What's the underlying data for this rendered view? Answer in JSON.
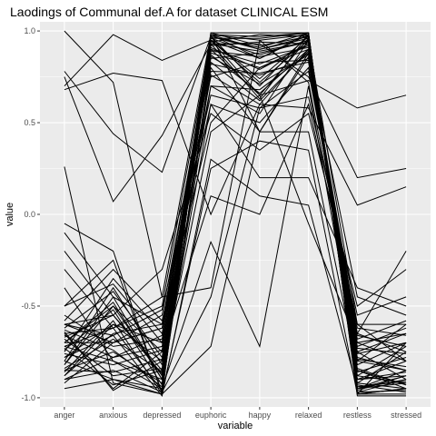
{
  "chart_data": {
    "type": "line",
    "title": "Laodings of Communal def.A for dataset CLINICAL ESM",
    "xlabel": "variable",
    "ylabel": "value",
    "categories": [
      "anger",
      "anxious",
      "depressed",
      "euphoric",
      "happy",
      "relaxed",
      "restless",
      "stressed"
    ],
    "ylim": [
      -1.05,
      1.05
    ],
    "y_ticks": [
      "-1.0",
      "-0.5",
      "0.0",
      "0.5",
      "1.0"
    ],
    "y_tick_values": [
      -1.0,
      -0.5,
      0.0,
      0.5,
      1.0
    ],
    "grid": true,
    "background": "#ebebeb",
    "line_color": "#000000",
    "series": [
      {
        "values": [
          1.0,
          0.72,
          -0.45,
          0.98,
          0.85,
          0.99,
          -0.98,
          -0.95
        ]
      },
      {
        "values": [
          0.78,
          0.44,
          0.23,
          0.97,
          0.9,
          0.97,
          -0.97,
          -0.9
        ]
      },
      {
        "values": [
          0.7,
          0.98,
          0.84,
          0.95,
          0.65,
          0.73,
          0.58,
          0.65
        ]
      },
      {
        "values": [
          0.75,
          0.07,
          0.43,
          0.93,
          0.93,
          0.75,
          0.2,
          0.25
        ]
      },
      {
        "values": [
          0.68,
          0.77,
          0.73,
          0.0,
          0.6,
          0.58,
          0.05,
          0.15
        ]
      },
      {
        "values": [
          0.26,
          -0.92,
          -0.98,
          -0.72,
          0.45,
          0.88,
          -0.65,
          -0.2
        ]
      },
      {
        "values": [
          -0.05,
          -0.2,
          -0.98,
          0.98,
          0.97,
          0.99,
          -0.95,
          -0.85
        ]
      },
      {
        "values": [
          -0.1,
          -0.45,
          -0.6,
          0.93,
          0.63,
          0.98,
          -0.88,
          -0.92
        ]
      },
      {
        "values": [
          -0.3,
          -0.62,
          -0.5,
          0.95,
          0.85,
          0.98,
          -0.98,
          -0.95
        ]
      },
      {
        "values": [
          -0.5,
          -0.38,
          -0.7,
          0.9,
          0.65,
          0.96,
          -0.9,
          -0.88
        ]
      },
      {
        "values": [
          -0.6,
          -0.55,
          -0.85,
          0.97,
          0.7,
          0.98,
          -0.85,
          -0.93
        ]
      },
      {
        "values": [
          -0.65,
          -0.95,
          -0.75,
          0.85,
          0.88,
          0.94,
          -0.82,
          -0.7
        ]
      },
      {
        "values": [
          -0.7,
          -0.7,
          -0.55,
          0.88,
          0.8,
          0.92,
          -0.75,
          -0.65
        ]
      },
      {
        "values": [
          -0.72,
          -0.8,
          -0.9,
          0.99,
          0.92,
          0.97,
          -0.93,
          -0.97
        ]
      },
      {
        "values": [
          -0.75,
          -0.35,
          -0.65,
          0.76,
          0.6,
          0.9,
          -0.7,
          -0.8
        ]
      },
      {
        "values": [
          -0.78,
          -0.6,
          -0.8,
          0.92,
          0.94,
          0.93,
          -0.95,
          -0.9
        ]
      },
      {
        "values": [
          -0.8,
          -0.9,
          -0.95,
          0.95,
          0.72,
          0.95,
          -0.6,
          -0.6
        ]
      },
      {
        "values": [
          -0.82,
          -0.5,
          -0.88,
          0.6,
          0.5,
          0.8,
          -0.65,
          -0.75
        ]
      },
      {
        "values": [
          -0.85,
          -0.75,
          -0.92,
          0.96,
          0.96,
          0.99,
          -0.98,
          -0.98
        ]
      },
      {
        "values": [
          -0.88,
          -0.65,
          -0.6,
          0.82,
          0.76,
          0.85,
          -0.78,
          -0.85
        ]
      },
      {
        "values": [
          -0.9,
          -0.85,
          -0.97,
          0.98,
          0.9,
          0.96,
          -0.92,
          -0.95
        ]
      },
      {
        "values": [
          -0.62,
          -0.42,
          -0.78,
          0.9,
          0.82,
          0.92,
          -0.88,
          -0.72
        ]
      },
      {
        "values": [
          -0.55,
          -0.72,
          -0.68,
          0.7,
          0.68,
          0.88,
          -0.72,
          -0.62
        ]
      },
      {
        "values": [
          -0.68,
          -0.88,
          -0.84,
          0.94,
          0.98,
          0.97,
          -0.96,
          -0.88
        ]
      },
      {
        "values": [
          -0.74,
          -0.52,
          -0.93,
          0.8,
          0.45,
          0.86,
          -0.45,
          -0.55
        ]
      },
      {
        "values": [
          -0.66,
          -0.78,
          -0.72,
          0.96,
          0.87,
          0.95,
          -0.84,
          -0.93
        ]
      },
      {
        "values": [
          -0.84,
          -0.68,
          -0.86,
          0.91,
          0.79,
          0.93,
          -0.9,
          -0.8
        ]
      },
      {
        "values": [
          -0.58,
          -0.3,
          -0.58,
          0.6,
          0.2,
          0.2,
          -0.4,
          -0.5
        ]
      },
      {
        "values": [
          -0.86,
          -0.58,
          -0.98,
          0.98,
          0.95,
          0.98,
          -0.97,
          -0.96
        ]
      },
      {
        "values": [
          -0.64,
          -0.96,
          -0.8,
          0.87,
          0.66,
          0.9,
          -0.8,
          -0.85
        ]
      },
      {
        "values": [
          -0.92,
          -0.7,
          -0.62,
          0.75,
          0.83,
          0.84,
          -0.68,
          -0.58
        ]
      },
      {
        "values": [
          -0.7,
          -0.48,
          -0.9,
          0.95,
          0.74,
          0.97,
          -0.94,
          -0.91
        ]
      },
      {
        "values": [
          -0.76,
          -0.82,
          -0.74,
          0.89,
          0.86,
          0.91,
          -0.86,
          -0.78
        ]
      },
      {
        "values": [
          -0.6,
          -0.66,
          -0.52,
          0.65,
          0.58,
          0.78,
          -0.62,
          -0.66
        ]
      },
      {
        "values": [
          -0.8,
          -0.4,
          -0.82,
          0.97,
          0.91,
          0.99,
          -0.99,
          -0.99
        ]
      },
      {
        "values": [
          -0.72,
          -0.62,
          -0.96,
          0.83,
          0.62,
          0.89,
          -0.76,
          -0.7
        ]
      },
      {
        "values": [
          -0.9,
          -0.78,
          -0.66,
          0.93,
          0.89,
          0.94,
          -0.9,
          -0.86
        ]
      },
      {
        "values": [
          -0.67,
          -0.55,
          -0.87,
          0.99,
          0.99,
          0.99,
          -0.95,
          -0.92
        ]
      },
      {
        "values": [
          -0.85,
          -0.86,
          -0.79,
          0.86,
          0.71,
          0.87,
          -0.79,
          -0.83
        ]
      },
      {
        "values": [
          -0.63,
          -0.74,
          -0.94,
          0.78,
          0.77,
          0.83,
          -0.73,
          -0.76
        ]
      },
      {
        "values": [
          -0.5,
          -0.25,
          -0.97,
          -0.45,
          0.58,
          0.64,
          -0.55,
          -0.45
        ]
      },
      {
        "values": [
          -0.95,
          -0.9,
          -0.98,
          0.25,
          0.4,
          0.35,
          -0.98,
          -0.7
        ]
      },
      {
        "values": [
          -0.2,
          -0.55,
          -0.3,
          0.55,
          0.35,
          0.55,
          -0.5,
          -0.3
        ]
      },
      {
        "values": [
          -0.4,
          -0.8,
          -0.95,
          -0.15,
          -0.72,
          0.7,
          -0.8,
          -0.6
        ]
      },
      {
        "values": [
          -0.78,
          -0.66,
          -0.99,
          0.3,
          0.1,
          0.05,
          -0.95,
          -0.88
        ]
      },
      {
        "values": [
          -0.73,
          -0.93,
          -0.85,
          0.45,
          0.65,
          -0.05,
          -0.7,
          -0.65
        ]
      },
      {
        "values": [
          -0.88,
          -0.6,
          -0.7,
          0.98,
          0.45,
          0.45,
          -0.85,
          -0.95
        ]
      },
      {
        "values": [
          -0.7,
          -0.5,
          -0.75,
          0.1,
          0.0,
          0.6,
          -0.6,
          -0.8
        ]
      },
      {
        "values": [
          -0.6,
          -0.7,
          -0.62,
          0.5,
          0.8,
          0.9,
          -0.75,
          -0.9
        ]
      },
      {
        "values": [
          -0.82,
          -0.45,
          -0.9,
          0.7,
          0.55,
          0.95,
          -0.92,
          -0.75
        ]
      },
      {
        "values": [
          -0.65,
          -0.62,
          -0.45,
          -0.4,
          0.95,
          0.72,
          -0.66,
          -0.72
        ]
      }
    ]
  }
}
